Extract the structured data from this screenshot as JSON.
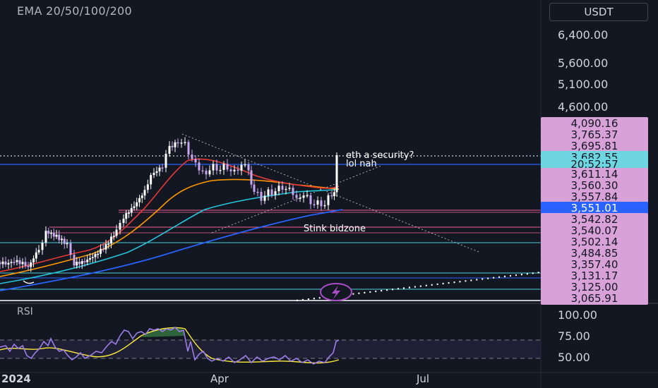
{
  "indicator_label": "EMA 20/50/100/200",
  "currency_button": "USDT",
  "rsi_label": "RSI",
  "annotations": {
    "eth_line1": "eth a security?",
    "eth_line2": "lol nah",
    "stink_bid": "Stink bidzone"
  },
  "price_axis_labels": [
    "6,400.00",
    "5,600.00",
    "5,100.00",
    "4,600.00"
  ],
  "price_tags": {
    "p4090": "4,090.16",
    "p3765": "3,765.37",
    "p3695": "3,695.81",
    "current_price": "3,682.55",
    "countdown": "20:52:57",
    "p3611": "3,611.14",
    "p3560": "3,560.30",
    "p3557": "3,557.84",
    "selected": "3,551.01",
    "p3542": "3,542.82",
    "p3540": "3,540.07",
    "p3502": "3,502.14",
    "p3484": "3,484.85",
    "p3357": "3,357.40",
    "p3131": "3,131.17",
    "p3125": "3,125.00",
    "p3065": "3,065.91"
  },
  "rsi_axis_labels": [
    "100.00",
    "75.00",
    "50.00"
  ],
  "time_axis_labels": [
    "2024",
    "Apr",
    "Jul"
  ],
  "colors": {
    "background": "#131722",
    "candle_up": "#ffffff",
    "candle_down": "#c9a6f0",
    "ema20": "#e53935",
    "ema50": "#ff9800",
    "ema100": "#26c6da",
    "ema200": "#2962ff",
    "rsi_line": "#9c7ee8",
    "rsi_ma": "#ffeb3b",
    "tag_pink": "#d8a1d8",
    "tag_cyan": "#6dd6e0",
    "tag_blue": "#2962ff"
  },
  "icons": {
    "flash": "lightning-bolt-icon"
  }
}
